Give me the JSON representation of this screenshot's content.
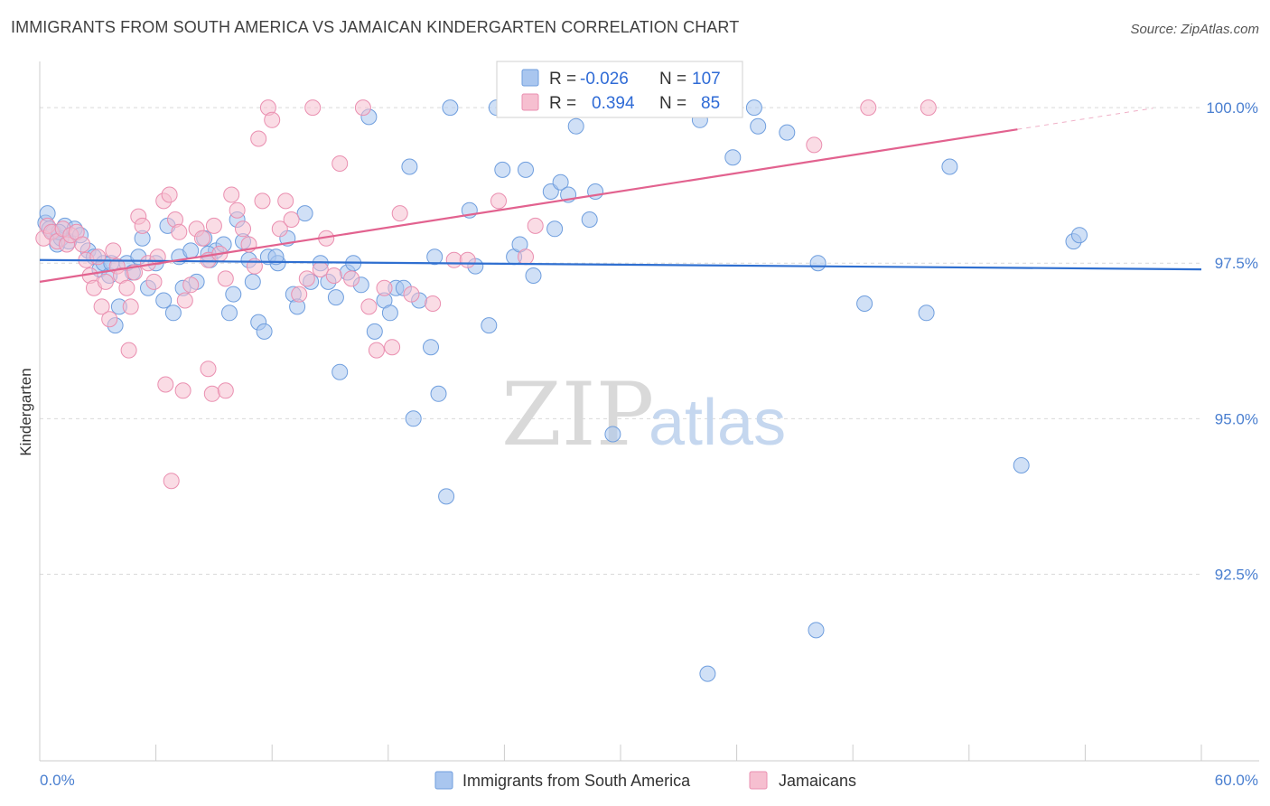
{
  "title": "IMMIGRANTS FROM SOUTH AMERICA VS JAMAICAN KINDERGARTEN CORRELATION CHART",
  "source": "Source: ZipAtlas.com",
  "watermark": {
    "zip": "ZIP",
    "atlas": "atlas"
  },
  "colors": {
    "blue_fill": "#a9c6ef",
    "blue_stroke": "#6f9ede",
    "blue_line": "#2f6fd0",
    "pink_fill": "#f6bfd0",
    "pink_stroke": "#ea8fb0",
    "pink_line": "#e2628f",
    "grid": "#d9d9d9",
    "axis_text": "#4a7fd0"
  },
  "legend_top": {
    "rows": [
      {
        "r_label": "R =",
        "r_value": "-0.026",
        "n_label": "N =",
        "n_value": "107",
        "color": "blue"
      },
      {
        "r_label": "R =",
        "r_value": "0.394",
        "n_label": "N =",
        "n_value": "85",
        "color": "pink"
      }
    ]
  },
  "legend_bottom": [
    {
      "label": "Immigrants from South America",
      "color": "blue"
    },
    {
      "label": "Jamaicans",
      "color": "pink"
    }
  ],
  "chart_data": {
    "type": "scatter",
    "title": "IMMIGRANTS FROM SOUTH AMERICA VS JAMAICAN KINDERGARTEN CORRELATION CHART",
    "xlabel": "",
    "ylabel": "Kindergarten",
    "xlim": [
      0,
      60
    ],
    "ylim": [
      89.5,
      100.8
    ],
    "x_tick_labels": [
      "0.0%",
      "60.0%"
    ],
    "y_ticks": [
      92.5,
      95.0,
      97.5,
      100.0
    ],
    "y_tick_labels": [
      "92.5%",
      "95.0%",
      "97.5%",
      "100.0%"
    ],
    "grid": true,
    "legend_position": "top-center",
    "series": [
      {
        "name": "Immigrants from South America",
        "color": "blue",
        "trend": {
          "x": [
            0,
            60
          ],
          "y": [
            97.55,
            97.4
          ]
        },
        "points": [
          [
            0.3,
            98.15
          ],
          [
            0.5,
            98.05
          ],
          [
            0.7,
            98.0
          ],
          [
            0.9,
            97.8
          ],
          [
            1.1,
            97.9
          ],
          [
            1.3,
            98.1
          ],
          [
            1.5,
            97.85
          ],
          [
            1.8,
            98.05
          ],
          [
            2.1,
            97.95
          ],
          [
            2.5,
            97.7
          ],
          [
            2.8,
            97.6
          ],
          [
            3.1,
            97.4
          ],
          [
            3.3,
            97.5
          ],
          [
            3.6,
            97.3
          ],
          [
            3.9,
            96.5
          ],
          [
            4.1,
            96.8
          ],
          [
            4.5,
            97.5
          ],
          [
            4.8,
            97.35
          ],
          [
            5.1,
            97.6
          ],
          [
            5.3,
            97.9
          ],
          [
            5.6,
            97.1
          ],
          [
            6.0,
            97.5
          ],
          [
            6.4,
            96.9
          ],
          [
            6.6,
            98.1
          ],
          [
            6.9,
            96.7
          ],
          [
            7.2,
            97.6
          ],
          [
            7.4,
            97.1
          ],
          [
            7.8,
            97.7
          ],
          [
            8.1,
            97.2
          ],
          [
            8.5,
            97.9
          ],
          [
            8.8,
            97.55
          ],
          [
            9.1,
            97.7
          ],
          [
            9.5,
            97.8
          ],
          [
            9.8,
            96.7
          ],
          [
            10.0,
            97.0
          ],
          [
            10.2,
            98.2
          ],
          [
            10.5,
            97.85
          ],
          [
            10.8,
            97.55
          ],
          [
            11.0,
            97.2
          ],
          [
            11.3,
            96.55
          ],
          [
            11.6,
            96.4
          ],
          [
            11.8,
            97.6
          ],
          [
            12.3,
            97.5
          ],
          [
            12.8,
            97.9
          ],
          [
            13.1,
            97.0
          ],
          [
            13.3,
            96.8
          ],
          [
            13.7,
            98.3
          ],
          [
            14.0,
            97.2
          ],
          [
            14.5,
            97.5
          ],
          [
            14.9,
            97.2
          ],
          [
            15.3,
            96.95
          ],
          [
            15.5,
            95.75
          ],
          [
            15.9,
            97.35
          ],
          [
            16.2,
            97.5
          ],
          [
            16.6,
            97.15
          ],
          [
            17.0,
            99.85
          ],
          [
            17.3,
            96.4
          ],
          [
            17.8,
            96.9
          ],
          [
            18.1,
            96.7
          ],
          [
            18.4,
            97.1
          ],
          [
            18.8,
            97.1
          ],
          [
            19.1,
            99.05
          ],
          [
            19.3,
            95.0
          ],
          [
            19.6,
            96.9
          ],
          [
            20.2,
            96.15
          ],
          [
            20.4,
            97.6
          ],
          [
            20.6,
            95.4
          ],
          [
            21.0,
            93.75
          ],
          [
            21.2,
            100.0
          ],
          [
            22.2,
            98.35
          ],
          [
            22.5,
            97.45
          ],
          [
            23.2,
            96.5
          ],
          [
            23.6,
            100.0
          ],
          [
            23.9,
            99.0
          ],
          [
            24.5,
            97.6
          ],
          [
            24.8,
            97.8
          ],
          [
            25.1,
            99.0
          ],
          [
            25.5,
            97.3
          ],
          [
            26.4,
            98.65
          ],
          [
            26.6,
            98.05
          ],
          [
            26.9,
            98.8
          ],
          [
            27.3,
            98.6
          ],
          [
            27.7,
            99.7
          ],
          [
            28.4,
            98.2
          ],
          [
            28.7,
            98.65
          ],
          [
            28.9,
            100.0
          ],
          [
            29.6,
            94.75
          ],
          [
            33.0,
            100.0
          ],
          [
            33.4,
            100.0
          ],
          [
            34.1,
            99.8
          ],
          [
            35.8,
            99.2
          ],
          [
            36.9,
            100.0
          ],
          [
            37.1,
            99.7
          ],
          [
            38.6,
            99.6
          ],
          [
            40.1,
            91.6
          ],
          [
            40.2,
            97.5
          ],
          [
            42.6,
            96.85
          ],
          [
            45.8,
            96.7
          ],
          [
            50.7,
            94.25
          ],
          [
            53.4,
            97.85
          ],
          [
            53.7,
            97.95
          ],
          [
            47.0,
            99.05
          ],
          [
            34.5,
            90.9
          ],
          [
            12.2,
            97.6
          ],
          [
            8.7,
            97.65
          ],
          [
            3.7,
            97.5
          ],
          [
            0.4,
            98.3
          ],
          [
            1.0,
            98.0
          ]
        ]
      },
      {
        "name": "Jamaicans",
        "color": "pink",
        "trend": {
          "x": [
            0,
            50.5
          ],
          "y": [
            97.2,
            99.65
          ]
        },
        "points": [
          [
            0.2,
            97.9
          ],
          [
            0.4,
            98.1
          ],
          [
            0.6,
            98.0
          ],
          [
            0.9,
            97.85
          ],
          [
            1.2,
            98.05
          ],
          [
            1.4,
            97.8
          ],
          [
            1.6,
            97.95
          ],
          [
            1.9,
            98.0
          ],
          [
            2.2,
            97.8
          ],
          [
            2.4,
            97.55
          ],
          [
            2.6,
            97.3
          ],
          [
            2.8,
            97.1
          ],
          [
            3.0,
            97.6
          ],
          [
            3.2,
            96.8
          ],
          [
            3.4,
            97.2
          ],
          [
            3.6,
            96.6
          ],
          [
            3.8,
            97.7
          ],
          [
            4.0,
            97.45
          ],
          [
            4.2,
            97.3
          ],
          [
            4.5,
            97.1
          ],
          [
            4.7,
            96.8
          ],
          [
            4.9,
            97.35
          ],
          [
            5.1,
            98.25
          ],
          [
            5.3,
            98.1
          ],
          [
            5.6,
            97.5
          ],
          [
            5.9,
            97.2
          ],
          [
            6.1,
            97.6
          ],
          [
            6.4,
            98.5
          ],
          [
            6.7,
            98.6
          ],
          [
            7.0,
            98.2
          ],
          [
            7.2,
            98.0
          ],
          [
            7.5,
            96.9
          ],
          [
            7.8,
            97.15
          ],
          [
            8.1,
            98.05
          ],
          [
            8.4,
            97.9
          ],
          [
            8.7,
            97.55
          ],
          [
            9.0,
            98.1
          ],
          [
            9.3,
            97.65
          ],
          [
            9.6,
            97.25
          ],
          [
            9.9,
            98.6
          ],
          [
            10.2,
            98.35
          ],
          [
            10.5,
            98.05
          ],
          [
            10.8,
            97.8
          ],
          [
            11.1,
            97.45
          ],
          [
            11.5,
            98.5
          ],
          [
            11.8,
            100.0
          ],
          [
            12.0,
            99.8
          ],
          [
            12.4,
            98.05
          ],
          [
            12.7,
            98.5
          ],
          [
            13.0,
            98.2
          ],
          [
            13.4,
            97.0
          ],
          [
            13.8,
            97.25
          ],
          [
            14.1,
            100.0
          ],
          [
            14.5,
            97.4
          ],
          [
            14.8,
            97.9
          ],
          [
            15.2,
            97.3
          ],
          [
            15.5,
            99.1
          ],
          [
            16.1,
            97.25
          ],
          [
            16.7,
            100.0
          ],
          [
            17.0,
            96.8
          ],
          [
            17.4,
            96.1
          ],
          [
            17.8,
            97.1
          ],
          [
            18.2,
            96.15
          ],
          [
            18.6,
            98.3
          ],
          [
            19.2,
            97.0
          ],
          [
            20.3,
            96.85
          ],
          [
            21.4,
            97.55
          ],
          [
            22.1,
            97.55
          ],
          [
            23.7,
            98.5
          ],
          [
            25.1,
            97.6
          ],
          [
            25.6,
            98.1
          ],
          [
            26.2,
            100.0
          ],
          [
            30.1,
            100.0
          ],
          [
            35.3,
            100.0
          ],
          [
            40.0,
            99.4
          ],
          [
            42.8,
            100.0
          ],
          [
            45.9,
            100.0
          ],
          [
            4.6,
            96.1
          ],
          [
            6.5,
            95.55
          ],
          [
            7.4,
            95.45
          ],
          [
            8.7,
            95.8
          ],
          [
            8.9,
            95.4
          ],
          [
            9.6,
            95.45
          ],
          [
            6.8,
            94.0
          ],
          [
            11.3,
            99.5
          ]
        ]
      }
    ]
  }
}
